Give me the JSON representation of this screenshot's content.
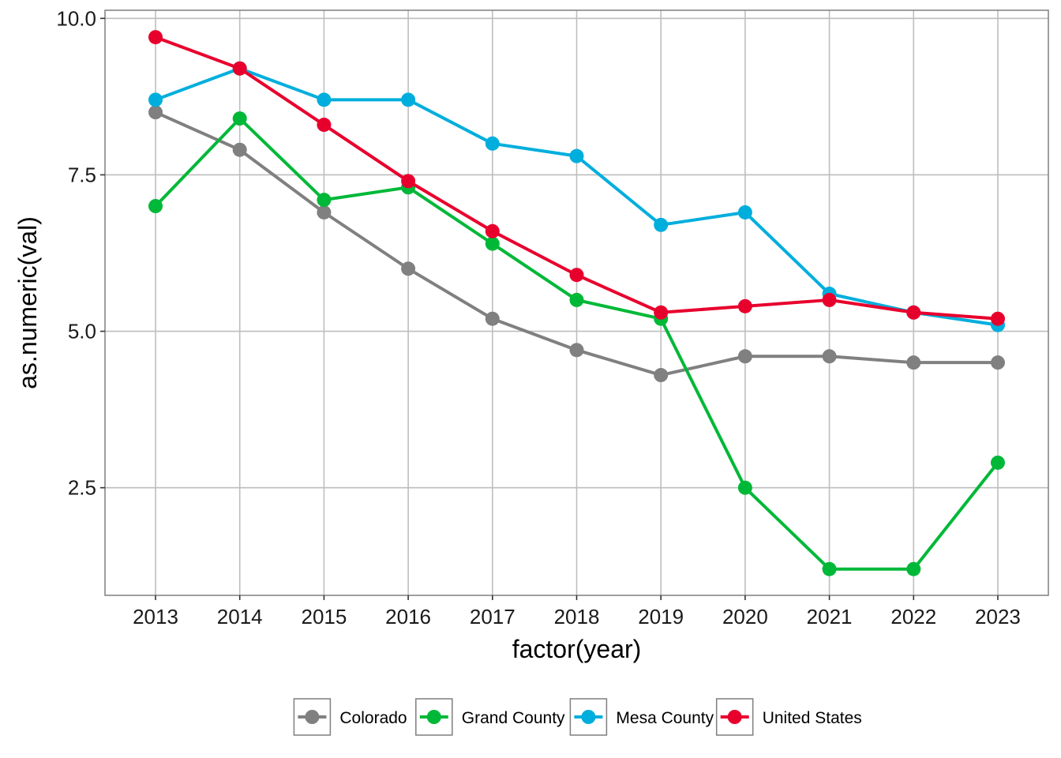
{
  "chart_data": {
    "type": "line",
    "title": "",
    "xlabel": "factor(year)",
    "ylabel": "as.numeric(val)",
    "categories": [
      "2013",
      "2014",
      "2015",
      "2016",
      "2017",
      "2018",
      "2019",
      "2020",
      "2021",
      "2022",
      "2023"
    ],
    "ylim": [
      0.78,
      10.13
    ],
    "yticks": [
      2.5,
      5.0,
      7.5,
      10.0
    ],
    "ytick_labels": [
      "2.5",
      "5.0",
      "7.5",
      "10.0"
    ],
    "grid": true,
    "legend_position": "bottom",
    "series": [
      {
        "name": "Colorado",
        "color": "#808080",
        "values": [
          8.5,
          7.9,
          6.9,
          6.0,
          5.2,
          4.7,
          4.3,
          4.6,
          4.6,
          4.5,
          4.5
        ]
      },
      {
        "name": "Grand County",
        "color": "#00B838",
        "values": [
          7.0,
          8.4,
          7.1,
          7.3,
          6.4,
          5.5,
          5.2,
          2.5,
          1.2,
          1.2,
          2.9
        ]
      },
      {
        "name": "Mesa County",
        "color": "#00AEDD",
        "values": [
          8.7,
          9.2,
          8.7,
          8.7,
          8.0,
          7.8,
          6.7,
          6.9,
          5.6,
          5.3,
          5.1
        ]
      },
      {
        "name": "United States",
        "color": "#E8002D",
        "values": [
          9.7,
          9.2,
          8.3,
          7.4,
          6.6,
          5.9,
          5.3,
          5.4,
          5.5,
          5.3,
          5.2
        ]
      }
    ]
  }
}
